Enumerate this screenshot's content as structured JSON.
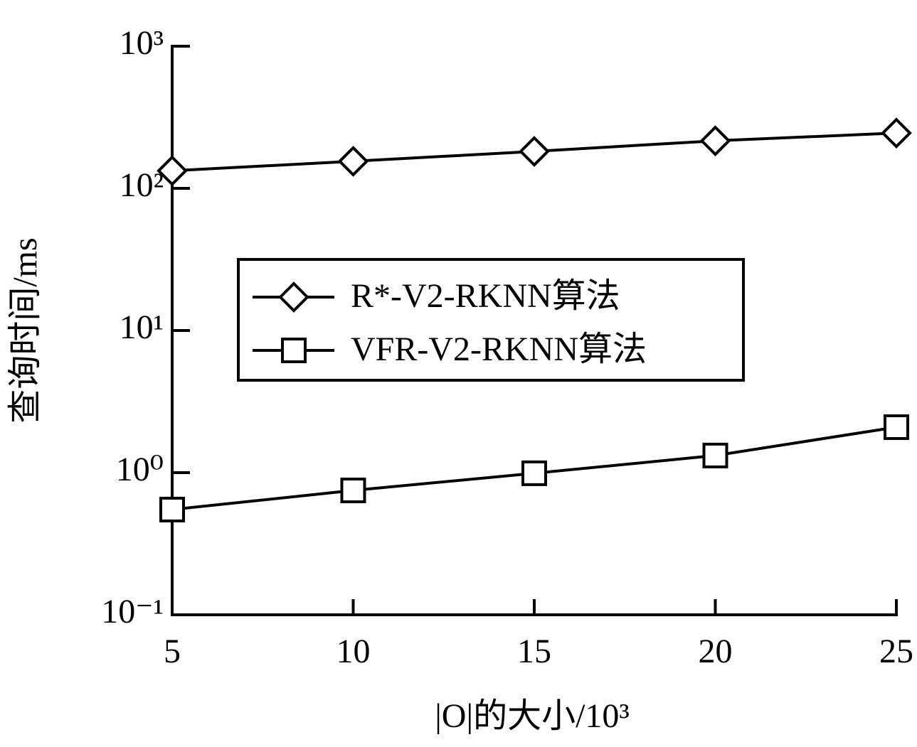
{
  "chart_data": {
    "type": "line",
    "x_label": "|O|的大小/10³",
    "y_label": "查询时间/ms",
    "x": [
      5,
      10,
      15,
      20,
      25
    ],
    "xlim": [
      5,
      25
    ],
    "xticks": [
      5,
      10,
      15,
      20,
      25
    ],
    "ylim": [
      0.1,
      1000
    ],
    "yticks": [
      {
        "value": 0.1,
        "label": "10⁻¹"
      },
      {
        "value": 1,
        "label": "10⁰"
      },
      {
        "value": 10,
        "label": "10¹"
      },
      {
        "value": 100,
        "label": "10²"
      },
      {
        "value": 1000,
        "label": "10³"
      }
    ],
    "y_scale": "log",
    "legend": "center-left",
    "series": [
      {
        "name": "R*-V2-RKNN算法",
        "color": "#000000",
        "marker": "diamond",
        "values": [
          133,
          155,
          182,
          216,
          245
        ]
      },
      {
        "name": "VFR-V2-RKNN算法",
        "color": "#000000",
        "marker": "square",
        "values": [
          0.55,
          0.75,
          0.99,
          1.32,
          2.09
        ]
      }
    ]
  }
}
